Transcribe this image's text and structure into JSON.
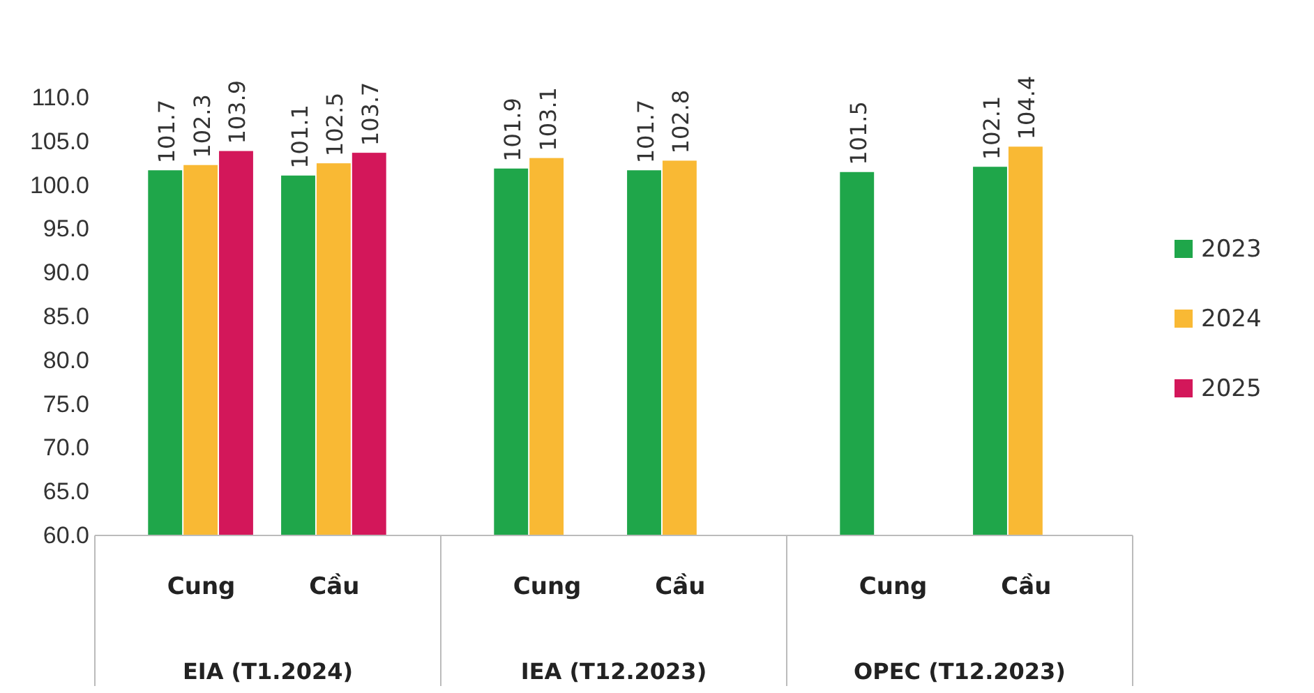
{
  "chart_data": {
    "type": "bar",
    "categories": [
      "Cung",
      "Cầu",
      "Cung",
      "Cầu",
      "Cung",
      "Cầu"
    ],
    "series": [
      {
        "name": "2023",
        "color": "#1fa64a",
        "values": [
          101.7,
          101.1,
          101.9,
          101.7,
          101.5,
          102.1
        ]
      },
      {
        "name": "2024",
        "color": "#f9b934",
        "values": [
          102.3,
          102.5,
          103.1,
          102.8,
          null,
          104.4
        ]
      },
      {
        "name": "2025",
        "color": "#d3175a",
        "values": [
          103.9,
          103.7,
          null,
          null,
          null,
          null
        ]
      }
    ],
    "annotations": [
      "EIA (T1.2024)",
      "IEA (T12.2023)",
      "OPEC (T12.2023)"
    ],
    "ylim": [
      60,
      110
    ],
    "yticks": [
      {
        "value": 60,
        "label": "60.0"
      },
      {
        "value": 65,
        "label": "65.0"
      },
      {
        "value": 70,
        "label": "70.0"
      },
      {
        "value": 75,
        "label": "75.0"
      },
      {
        "value": 80,
        "label": "80.0"
      },
      {
        "value": 85,
        "label": "85.0"
      },
      {
        "value": 90,
        "label": "90.0"
      },
      {
        "value": 95,
        "label": "95.0"
      },
      {
        "value": 100,
        "label": "100.0"
      },
      {
        "value": 105,
        "label": "105.0"
      },
      {
        "value": 110,
        "label": "110.0"
      }
    ],
    "data_labels": true,
    "legend": "right",
    "grid": false
  }
}
